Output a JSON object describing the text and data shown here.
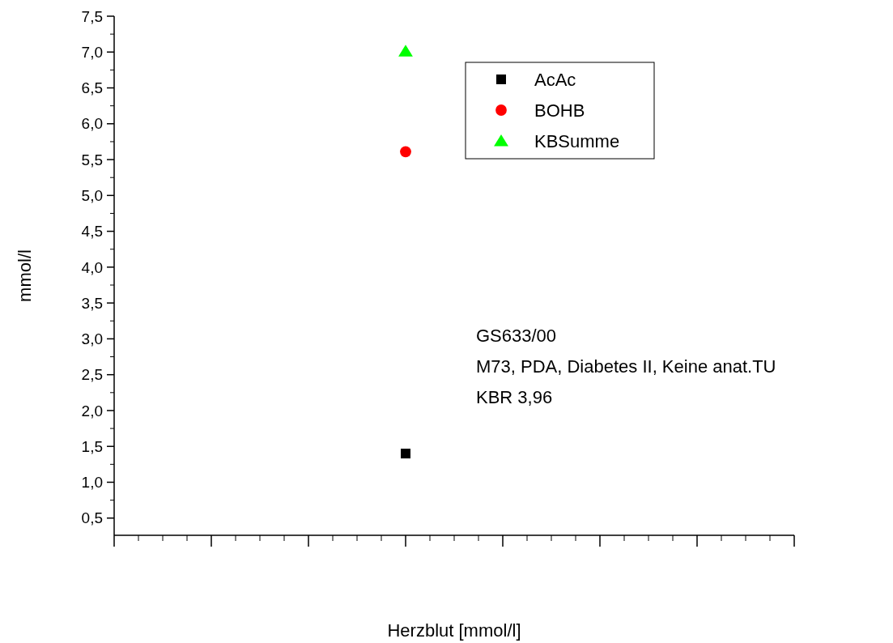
{
  "chart_data": {
    "type": "scatter",
    "xlabel": "Herzblut [mmol/l]",
    "ylabel": "mmol/l",
    "categories": [
      null,
      null,
      null,
      null,
      null,
      null,
      null,
      null
    ],
    "series": [
      {
        "name": "AcAc",
        "color": "#000000",
        "marker": "square",
        "values": [
          null,
          null,
          null,
          1.4,
          null,
          null,
          null,
          null
        ]
      },
      {
        "name": "BOHB",
        "color": "#ff0000",
        "marker": "circle",
        "values": [
          null,
          null,
          null,
          5.61,
          null,
          null,
          null,
          null
        ]
      },
      {
        "name": "KBSumme",
        "color": "#00ff00",
        "marker": "triangle",
        "values": [
          null,
          null,
          null,
          7.01,
          null,
          null,
          null,
          null
        ]
      }
    ],
    "ylim": [
      0.26,
      7.5
    ],
    "yticks": [
      {
        "value": 0.5,
        "label": "0,5"
      },
      {
        "value": 1,
        "label": "1,0"
      },
      {
        "value": 1.5,
        "label": "1,5"
      },
      {
        "value": 2,
        "label": "2,0"
      },
      {
        "value": 2.5,
        "label": "2,5"
      },
      {
        "value": 3,
        "label": "3,0"
      },
      {
        "value": 3.5,
        "label": "3,5"
      },
      {
        "value": 4,
        "label": "4,0"
      },
      {
        "value": 4.5,
        "label": "4,5"
      },
      {
        "value": 5,
        "label": "5,0"
      },
      {
        "value": 5.5,
        "label": "5,5"
      },
      {
        "value": 6,
        "label": "6,0"
      },
      {
        "value": 6.5,
        "label": "6,5"
      },
      {
        "value": 7,
        "label": "7,0"
      },
      {
        "value": 7.5,
        "label": "7,5"
      }
    ],
    "tick_labels": "y",
    "grid": false,
    "legend": "top right",
    "annotations": [
      "GS633/00",
      "M73, PDA, Diabetes II, Keine anat.TU",
      "KBR 3,96"
    ]
  }
}
